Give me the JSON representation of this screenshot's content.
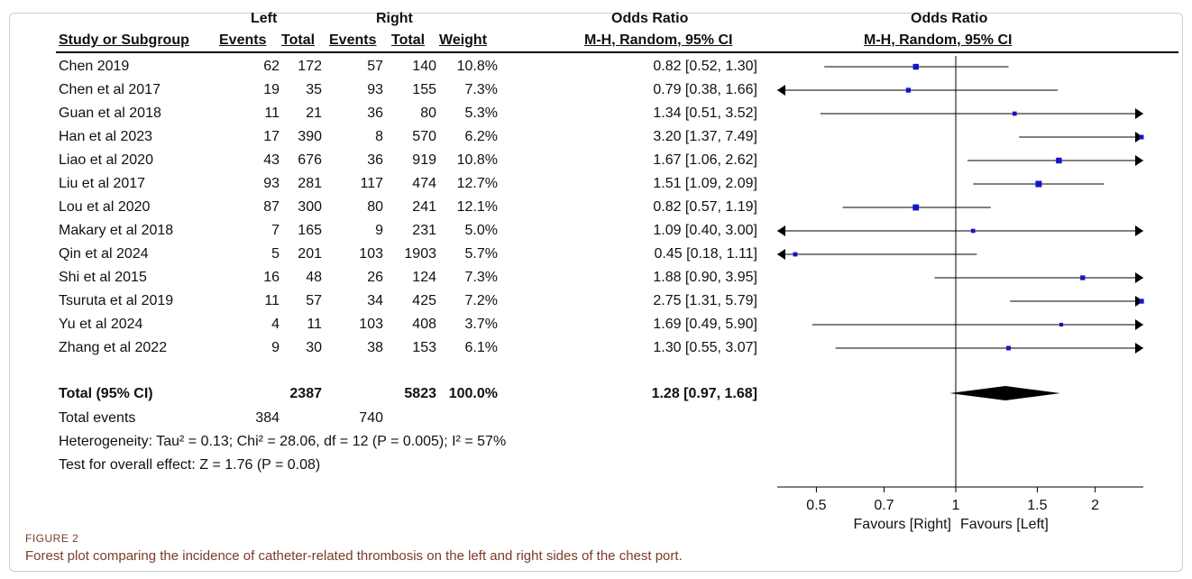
{
  "headers": {
    "group_left": "Left",
    "group_right": "Right",
    "or_title": "Odds Ratio",
    "or_method": "M-H, Random, 95% CI",
    "plot_title": "Odds Ratio",
    "plot_method": "M-H, Random, 95% CI",
    "study": "Study or Subgroup",
    "events": "Events",
    "total": "Total",
    "weight": "Weight"
  },
  "studies": [
    {
      "name": "Chen  2019",
      "le": "62",
      "lt": "172",
      "re": "57",
      "rt": "140",
      "w": "10.8%",
      "ci": "0.82 [0.52, 1.30]"
    },
    {
      "name": "Chen et al  2017",
      "le": "19",
      "lt": "35",
      "re": "93",
      "rt": "155",
      "w": "7.3%",
      "ci": "0.79 [0.38, 1.66]"
    },
    {
      "name": "Guan et al  2018",
      "le": "11",
      "lt": "21",
      "re": "36",
      "rt": "80",
      "w": "5.3%",
      "ci": "1.34 [0.51, 3.52]"
    },
    {
      "name": "Han et al  2023",
      "le": "17",
      "lt": "390",
      "re": "8",
      "rt": "570",
      "w": "6.2%",
      "ci": "3.20 [1.37, 7.49]"
    },
    {
      "name": "Liao  et al 2020",
      "le": "43",
      "lt": "676",
      "re": "36",
      "rt": "919",
      "w": "10.8%",
      "ci": "1.67 [1.06, 2.62]"
    },
    {
      "name": "Liu et al  2017",
      "le": "93",
      "lt": "281",
      "re": "117",
      "rt": "474",
      "w": "12.7%",
      "ci": "1.51 [1.09, 2.09]"
    },
    {
      "name": "Lou et al  2020",
      "le": "87",
      "lt": "300",
      "re": "80",
      "rt": "241",
      "w": "12.1%",
      "ci": "0.82 [0.57, 1.19]"
    },
    {
      "name": "Makary  et al 2018",
      "le": "7",
      "lt": "165",
      "re": "9",
      "rt": "231",
      "w": "5.0%",
      "ci": "1.09 [0.40, 3.00]"
    },
    {
      "name": "Qin et al  2024",
      "le": "5",
      "lt": "201",
      "re": "103",
      "rt": "1903",
      "w": "5.7%",
      "ci": "0.45 [0.18, 1.11]"
    },
    {
      "name": "Shi et al  2015",
      "le": "16",
      "lt": "48",
      "re": "26",
      "rt": "124",
      "w": "7.3%",
      "ci": "1.88 [0.90, 3.95]"
    },
    {
      "name": "Tsuruta et al 2019",
      "le": "11",
      "lt": "57",
      "re": "34",
      "rt": "425",
      "w": "7.2%",
      "ci": "2.75 [1.31, 5.79]"
    },
    {
      "name": "Yu et al  2024",
      "le": "4",
      "lt": "11",
      "re": "103",
      "rt": "408",
      "w": "3.7%",
      "ci": "1.69 [0.49, 5.90]"
    },
    {
      "name": "Zhang et al  2022",
      "le": "9",
      "lt": "30",
      "re": "38",
      "rt": "153",
      "w": "6.1%",
      "ci": "1.30 [0.55, 3.07]"
    }
  ],
  "total": {
    "name": "Total (95% CI)",
    "lt": "2387",
    "rt": "5823",
    "w": "100.0%",
    "ci": "1.28 [0.97, 1.68]"
  },
  "events": {
    "label": "Total events",
    "left": "384",
    "right": "740"
  },
  "heterogeneity": "Heterogeneity: Tau² = 0.13; Chi² = 28.06, df = 12 (P = 0.005); I² = 57%",
  "overall": "Test for overall effect: Z = 1.76 (P = 0.08)",
  "figure_label": "FIGURE 2",
  "caption": "Forest plot comparing the incidence of catheter-related thrombosis on the left and right sides of the chest port.",
  "colors": {
    "marker": "#1414c8",
    "diamond": "#000000",
    "caption": "#7a3b27"
  },
  "chart_data": {
    "type": "forest",
    "scale": "log",
    "null_value": 1,
    "xticks": [
      0.5,
      0.7,
      1,
      1.5,
      2
    ],
    "xtick_labels": [
      "0.5",
      "0.7",
      "1",
      "1.5",
      "2"
    ],
    "favours_left_label": "Favours [Right]",
    "favours_right_label": "Favours [Left]",
    "studies": [
      {
        "or": 0.82,
        "lo": 0.52,
        "hi": 1.3,
        "weight": 10.8
      },
      {
        "or": 0.79,
        "lo": 0.38,
        "hi": 1.66,
        "weight": 7.3
      },
      {
        "or": 1.34,
        "lo": 0.51,
        "hi": 3.52,
        "weight": 5.3
      },
      {
        "or": 3.2,
        "lo": 1.37,
        "hi": 7.49,
        "weight": 6.2
      },
      {
        "or": 1.67,
        "lo": 1.06,
        "hi": 2.62,
        "weight": 10.8
      },
      {
        "or": 1.51,
        "lo": 1.09,
        "hi": 2.09,
        "weight": 12.7
      },
      {
        "or": 0.82,
        "lo": 0.57,
        "hi": 1.19,
        "weight": 12.1
      },
      {
        "or": 1.09,
        "lo": 0.4,
        "hi": 3.0,
        "weight": 5.0
      },
      {
        "or": 0.45,
        "lo": 0.18,
        "hi": 1.11,
        "weight": 5.7
      },
      {
        "or": 1.88,
        "lo": 0.9,
        "hi": 3.95,
        "weight": 7.3
      },
      {
        "or": 2.75,
        "lo": 1.31,
        "hi": 5.79,
        "weight": 7.2
      },
      {
        "or": 1.69,
        "lo": 0.49,
        "hi": 5.9,
        "weight": 3.7
      },
      {
        "or": 1.3,
        "lo": 0.55,
        "hi": 3.07,
        "weight": 6.1
      }
    ],
    "pooled": {
      "or": 1.28,
      "lo": 0.97,
      "hi": 1.68
    }
  }
}
